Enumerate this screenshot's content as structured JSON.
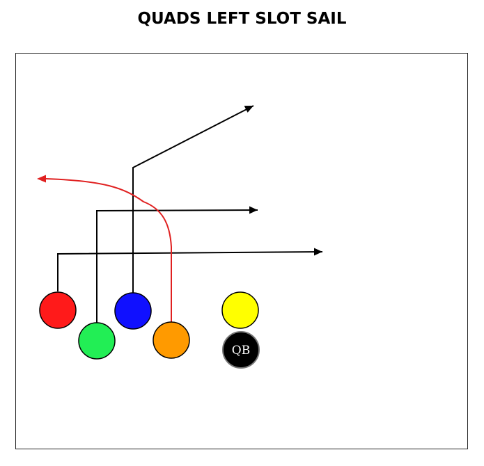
{
  "title": "QUADS LEFT SLOT SAIL",
  "colors": {
    "route": "#000000",
    "highlight_route": "#e02020",
    "receiver_red": "#ff1a1a",
    "receiver_green": "#22ee55",
    "receiver_blue": "#1010ff",
    "receiver_orange": "#ff9a00",
    "center_yellow": "#ffff00",
    "qb_fill": "#000000",
    "qb_text": "#ffffff"
  },
  "players": [
    {
      "id": "red",
      "color_key": "receiver_red"
    },
    {
      "id": "green",
      "color_key": "receiver_green"
    },
    {
      "id": "blue",
      "color_key": "receiver_blue"
    },
    {
      "id": "orange",
      "color_key": "receiver_orange"
    },
    {
      "id": "yellow",
      "color_key": "center_yellow"
    },
    {
      "id": "qb",
      "color_key": "qb_fill",
      "label": "QB"
    }
  ]
}
